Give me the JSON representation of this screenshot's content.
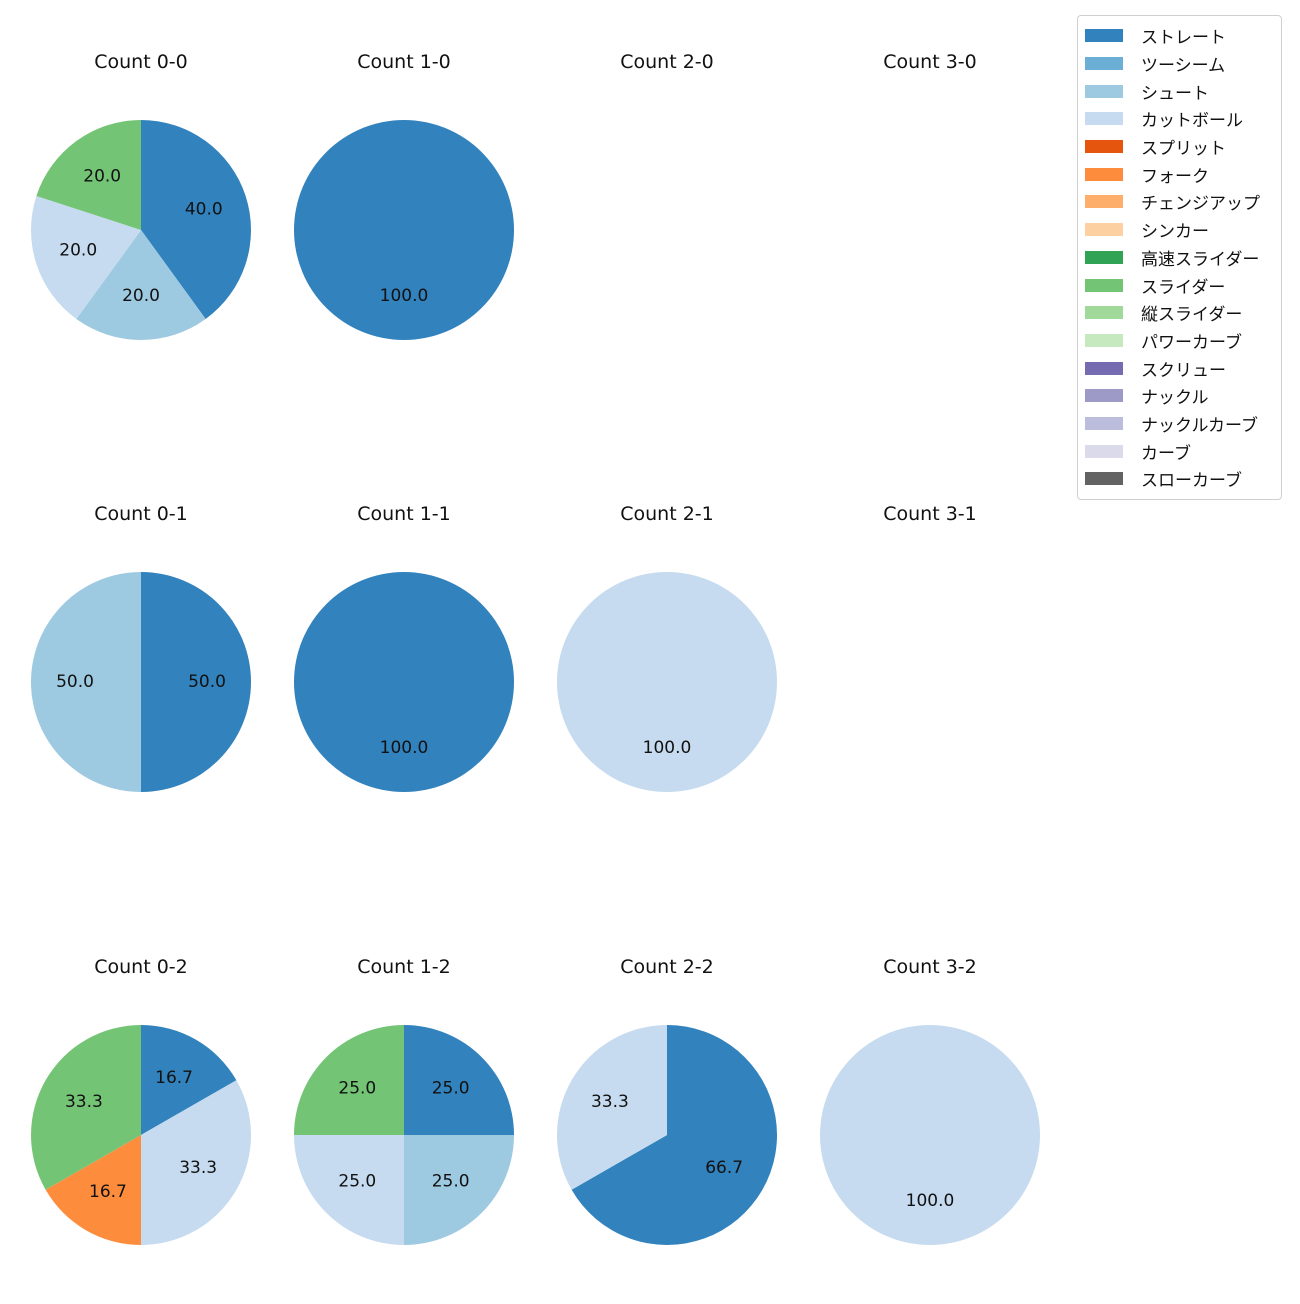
{
  "chart_data": {
    "type": "pie",
    "pitch_types": [
      {
        "name": "ストレート",
        "color": "#3182bd"
      },
      {
        "name": "ツーシーム",
        "color": "#6baed6"
      },
      {
        "name": "シュート",
        "color": "#9ecae1"
      },
      {
        "name": "カットボール",
        "color": "#c6dbef"
      },
      {
        "name": "スプリット",
        "color": "#e6550d"
      },
      {
        "name": "フォーク",
        "color": "#fd8d3c"
      },
      {
        "name": "チェンジアップ",
        "color": "#fdae6b"
      },
      {
        "name": "シンカー",
        "color": "#fdd0a2"
      },
      {
        "name": "高速スライダー",
        "color": "#31a354"
      },
      {
        "name": "スライダー",
        "color": "#74c476"
      },
      {
        "name": "縦スライダー",
        "color": "#a1d99b"
      },
      {
        "name": "パワーカーブ",
        "color": "#c7e9c0"
      },
      {
        "name": "スクリュー",
        "color": "#756bb1"
      },
      {
        "name": "ナックル",
        "color": "#9e9ac8"
      },
      {
        "name": "ナックルカーブ",
        "color": "#bcbddc"
      },
      {
        "name": "カーブ",
        "color": "#dadaeb"
      },
      {
        "name": "スローカーブ",
        "color": "#636363"
      }
    ],
    "panels": [
      {
        "title": "Count 0-0",
        "slices": [
          {
            "type": "ストレート",
            "value": 40.0
          },
          {
            "type": "シュート",
            "value": 20.0
          },
          {
            "type": "カットボール",
            "value": 20.0
          },
          {
            "type": "スライダー",
            "value": 20.0
          }
        ]
      },
      {
        "title": "Count 1-0",
        "slices": [
          {
            "type": "ストレート",
            "value": 100.0
          }
        ]
      },
      {
        "title": "Count 2-0",
        "slices": []
      },
      {
        "title": "Count 3-0",
        "slices": []
      },
      {
        "title": "Count 0-1",
        "slices": [
          {
            "type": "ストレート",
            "value": 50.0
          },
          {
            "type": "シュート",
            "value": 50.0
          }
        ]
      },
      {
        "title": "Count 1-1",
        "slices": [
          {
            "type": "ストレート",
            "value": 100.0
          }
        ]
      },
      {
        "title": "Count 2-1",
        "slices": [
          {
            "type": "カットボール",
            "value": 100.0
          }
        ]
      },
      {
        "title": "Count 3-1",
        "slices": []
      },
      {
        "title": "Count 0-2",
        "slices": [
          {
            "type": "ストレート",
            "value": 16.7
          },
          {
            "type": "カットボール",
            "value": 33.3
          },
          {
            "type": "フォーク",
            "value": 16.7
          },
          {
            "type": "スライダー",
            "value": 33.3
          }
        ]
      },
      {
        "title": "Count 1-2",
        "slices": [
          {
            "type": "ストレート",
            "value": 25.0
          },
          {
            "type": "シュート",
            "value": 25.0
          },
          {
            "type": "カットボール",
            "value": 25.0
          },
          {
            "type": "スライダー",
            "value": 25.0
          }
        ]
      },
      {
        "title": "Count 2-2",
        "slices": [
          {
            "type": "ストレート",
            "value": 66.7
          },
          {
            "type": "カットボール",
            "value": 33.3
          }
        ]
      },
      {
        "title": "Count 3-2",
        "slices": [
          {
            "type": "カットボール",
            "value": 100.0
          }
        ]
      }
    ]
  }
}
